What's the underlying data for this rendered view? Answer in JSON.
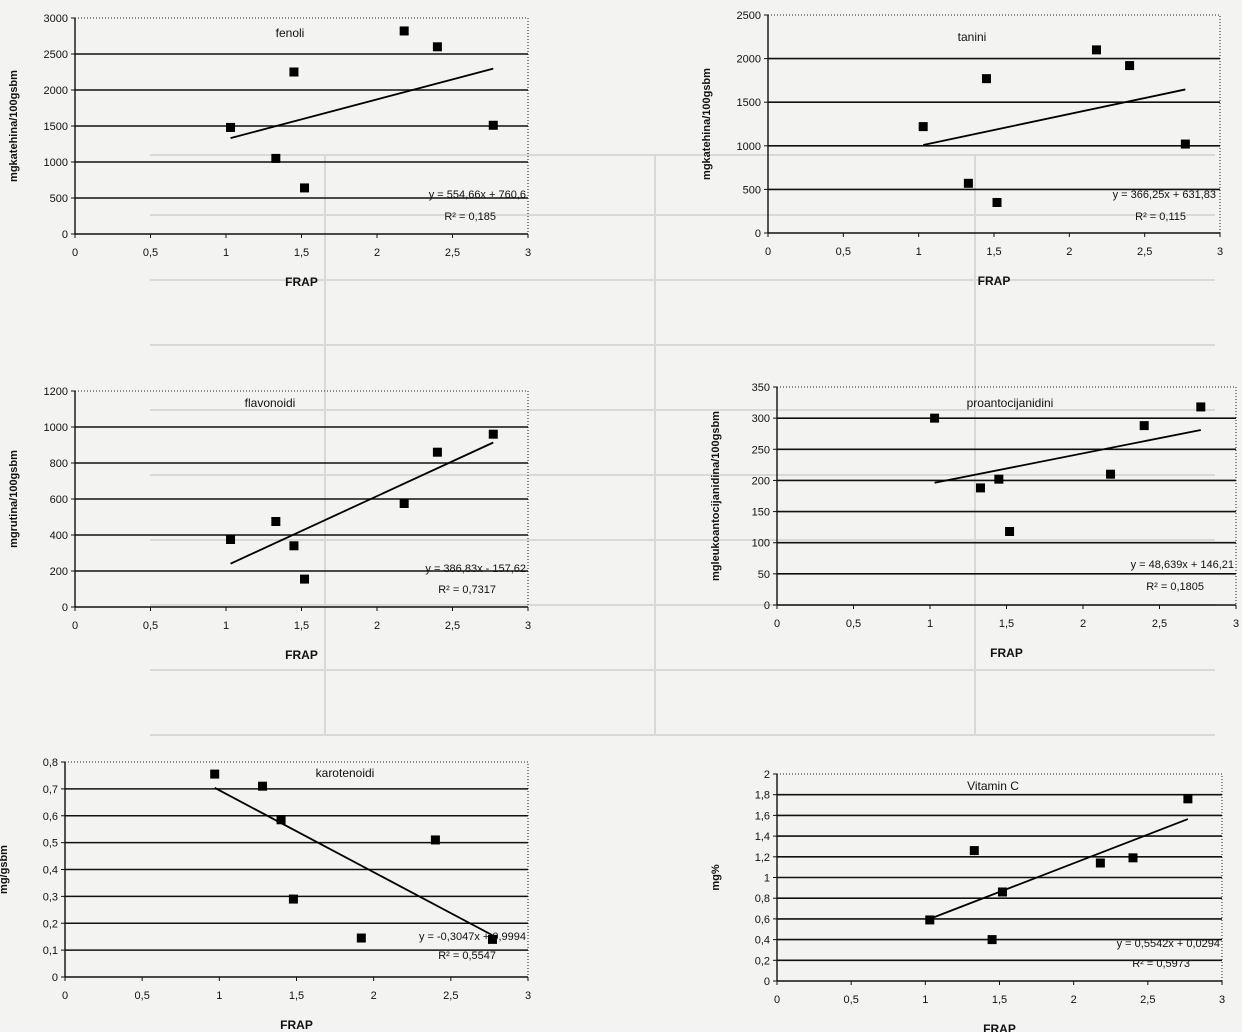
{
  "chart_data": [
    {
      "type": "scatter",
      "title": "fenoli",
      "xlabel": "FRAP",
      "ylabel": "mgkatehina/100gsbm",
      "xlim": [
        0,
        3
      ],
      "ylim": [
        0,
        3000
      ],
      "xticks": [
        "0",
        "0,5",
        "1",
        "1,5",
        "2",
        "2,5",
        "3"
      ],
      "yticks": [
        "0",
        "500",
        "1000",
        "1500",
        "2000",
        "2500",
        "3000"
      ],
      "grid": "horizontal",
      "points": [
        [
          1.03,
          1480
        ],
        [
          1.33,
          1050
        ],
        [
          1.45,
          2250
        ],
        [
          1.52,
          640
        ],
        [
          2.18,
          2820
        ],
        [
          2.4,
          2600
        ],
        [
          2.77,
          1510
        ]
      ],
      "trend": {
        "slope": 554.66,
        "intercept": 760.6,
        "x_range": [
          1.03,
          2.77
        ]
      },
      "equation": "y = 554,66x + 760,6",
      "r2": "R² = 0,185"
    },
    {
      "type": "scatter",
      "title": "tanini",
      "xlabel": "FRAP",
      "ylabel": "mgkatehina/100gsbm",
      "xlim": [
        0,
        3
      ],
      "ylim": [
        0,
        2500
      ],
      "xticks": [
        "0",
        "0,5",
        "1",
        "1,5",
        "2",
        "2,5",
        "3"
      ],
      "yticks": [
        "0",
        "500",
        "1000",
        "1500",
        "2000",
        "2500"
      ],
      "grid": "horizontal",
      "points": [
        [
          1.03,
          1220
        ],
        [
          1.33,
          570
        ],
        [
          1.45,
          1770
        ],
        [
          1.52,
          350
        ],
        [
          2.18,
          2100
        ],
        [
          2.4,
          1920
        ],
        [
          2.77,
          1020
        ]
      ],
      "trend": {
        "slope": 366.25,
        "intercept": 631.83,
        "x_range": [
          1.03,
          2.77
        ]
      },
      "equation": "y = 366,25x + 631,83",
      "r2": "R² = 0,115"
    },
    {
      "type": "scatter",
      "title": "flavonoidi",
      "xlabel": "FRAP",
      "ylabel": "mgrutina/100gsbm",
      "xlim": [
        0,
        3
      ],
      "ylim": [
        0,
        1200
      ],
      "xticks": [
        "0",
        "0,5",
        "1",
        "1,5",
        "2",
        "2,5",
        "3"
      ],
      "yticks": [
        "0",
        "200",
        "400",
        "600",
        "800",
        "1000",
        "1200"
      ],
      "grid": "horizontal",
      "points": [
        [
          1.03,
          375
        ],
        [
          1.33,
          475
        ],
        [
          1.45,
          340
        ],
        [
          1.52,
          155
        ],
        [
          2.18,
          575
        ],
        [
          2.4,
          860
        ],
        [
          2.77,
          960
        ]
      ],
      "trend": {
        "slope": 386.83,
        "intercept": -157.62,
        "x_range": [
          1.03,
          2.77
        ]
      },
      "equation": "y = 386,83x - 157,62",
      "r2": "R² = 0,7317"
    },
    {
      "type": "scatter",
      "title": "proantocijanidini",
      "xlabel": "FRAP",
      "ylabel": "mgleukoantocijanidina/100gsbm",
      "xlim": [
        0,
        3
      ],
      "ylim": [
        0,
        350
      ],
      "xticks": [
        "0",
        "0,5",
        "1",
        "1,5",
        "2",
        "2,5",
        "3"
      ],
      "yticks": [
        "0",
        "50",
        "100",
        "150",
        "200",
        "250",
        "300",
        "350"
      ],
      "grid": "horizontal",
      "points": [
        [
          1.03,
          300
        ],
        [
          1.33,
          188
        ],
        [
          1.45,
          202
        ],
        [
          1.52,
          118
        ],
        [
          2.18,
          210
        ],
        [
          2.4,
          288
        ],
        [
          2.77,
          318
        ]
      ],
      "trend": {
        "slope": 48.639,
        "intercept": 146.21,
        "x_range": [
          1.03,
          2.77
        ]
      },
      "equation": "y = 48,639x + 146,21",
      "r2": "R² = 0,1805"
    },
    {
      "type": "scatter",
      "title": "karotenoidi",
      "xlabel": "FRAP",
      "ylabel": "mg/gsbm",
      "xlim": [
        0,
        3
      ],
      "ylim": [
        0,
        0.8
      ],
      "xticks": [
        "0",
        "0,5",
        "1",
        "1,5",
        "2",
        "2,5",
        "3"
      ],
      "yticks": [
        "0",
        "0,1",
        "0,2",
        "0,3",
        "0,4",
        "0,5",
        "0,6",
        "0,7",
        "0,8"
      ],
      "grid": "horizontal",
      "points": [
        [
          0.97,
          0.755
        ],
        [
          1.28,
          0.71
        ],
        [
          1.4,
          0.585
        ],
        [
          1.48,
          0.29
        ],
        [
          1.92,
          0.145
        ],
        [
          2.4,
          0.51
        ],
        [
          2.77,
          0.14
        ]
      ],
      "trend": {
        "slope": -0.3047,
        "intercept": 0.9994,
        "x_range": [
          0.97,
          2.77
        ]
      },
      "equation": "y = -0,3047x + 0,9994",
      "r2": "R² = 0,5547"
    },
    {
      "type": "scatter",
      "title": "Vitamin C",
      "xlabel": "FRAP",
      "ylabel": "mg%",
      "xlim": [
        0,
        3
      ],
      "ylim": [
        0,
        2
      ],
      "xticks": [
        "0",
        "0,5",
        "1",
        "1,5",
        "2",
        "2,5",
        "3"
      ],
      "yticks": [
        "0",
        "0,2",
        "0,4",
        "0,6",
        "0,8",
        "1",
        "1,2",
        "1,4",
        "1,6",
        "1,8",
        "2"
      ],
      "grid": "horizontal",
      "points": [
        [
          1.03,
          0.59
        ],
        [
          1.33,
          1.26
        ],
        [
          1.45,
          0.4
        ],
        [
          1.52,
          0.86
        ],
        [
          2.18,
          1.14
        ],
        [
          2.4,
          1.19
        ],
        [
          2.77,
          1.76
        ]
      ],
      "trend": {
        "slope": 0.5542,
        "intercept": 0.0294,
        "x_range": [
          1.03,
          2.77
        ]
      },
      "equation": "y = 0,5542x + 0,0294",
      "r2": "R² = 0,5973"
    }
  ]
}
